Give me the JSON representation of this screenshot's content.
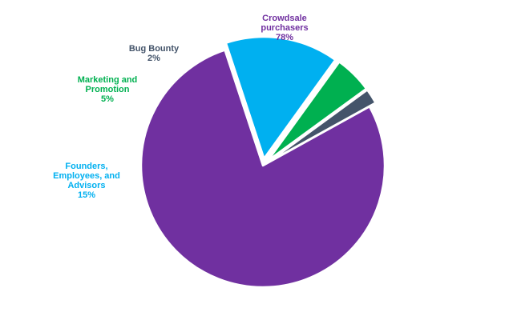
{
  "chart_data": {
    "type": "pie",
    "title": "",
    "slices": [
      {
        "label_lines": [
          "Crowdsale",
          "purchasers"
        ],
        "value": 78,
        "value_label": "78%",
        "color": "#7030a0",
        "exploded": false
      },
      {
        "label_lines": [
          "Founders,",
          "Employees, and",
          "Advisors"
        ],
        "value": 15,
        "value_label": "15%",
        "color": "#00b0f0",
        "exploded": true
      },
      {
        "label_lines": [
          "Marketing and",
          "Promotion"
        ],
        "value": 5,
        "value_label": "5%",
        "color": "#00b050",
        "exploded": true
      },
      {
        "label_lines": [
          "Bug Bounty"
        ],
        "value": 2,
        "value_label": "2%",
        "color": "#44546a",
        "exploded": true
      }
    ],
    "start_angle_deg": -29,
    "direction": "clockwise",
    "legend": "none",
    "label_colors": [
      "#7030a0",
      "#00b0f0",
      "#00b050",
      "#44546a"
    ]
  }
}
